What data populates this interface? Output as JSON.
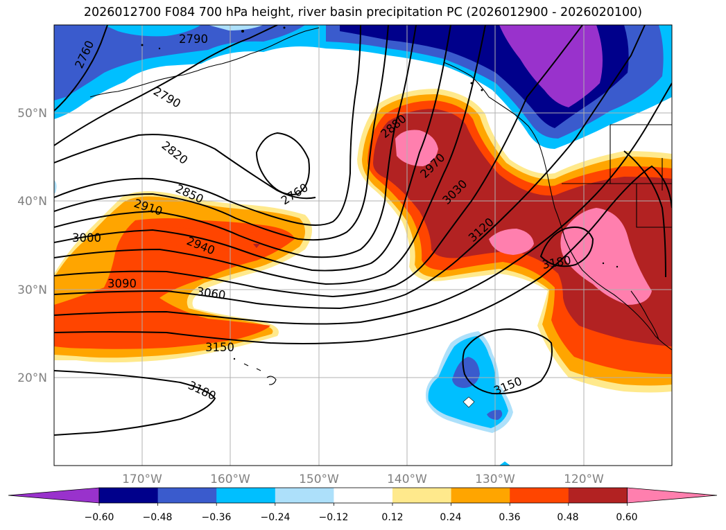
{
  "title": "2026012700 F084 700 hPa height, river basin precipitation PC (2026012900 - 2026020100)",
  "map": {
    "lat_labels": [
      {
        "text": "50°N",
        "lat": 50
      },
      {
        "text": "40°N",
        "lat": 40
      },
      {
        "text": "30°N",
        "lat": 30
      },
      {
        "text": "20°N",
        "lat": 20
      }
    ],
    "lon_labels": [
      {
        "text": "170°W",
        "lon": -170
      },
      {
        "text": "160°W",
        "lon": -160
      },
      {
        "text": "150°W",
        "lon": -150
      },
      {
        "text": "140°W",
        "lon": -140
      },
      {
        "text": "130°W",
        "lon": -130
      },
      {
        "text": "120°W",
        "lon": -120
      }
    ],
    "extent": {
      "lon": [
        -180,
        -110
      ],
      "lat": [
        10,
        60
      ]
    },
    "grid": true,
    "contour_labels": [
      "2790",
      "2760",
      "2790",
      "2820",
      "2850",
      "2910",
      "2940",
      "3000",
      "3090",
      "3060",
      "3150",
      "3180",
      "2760",
      "2880",
      "2970",
      "3030",
      "3120",
      "3180",
      "3150"
    ]
  },
  "colorbar": {
    "ticks": [
      "−0.60",
      "−0.48",
      "−0.36",
      "−0.24",
      "−0.12",
      "0.12",
      "0.24",
      "0.36",
      "0.48",
      "0.60"
    ],
    "colors": [
      "#9932CC",
      "#00008B",
      "#3A5BCD",
      "#00BFFF",
      "#ADE0FA",
      "#FFFFFF",
      "#FFE98C",
      "#FFA500",
      "#FF4500",
      "#B22222",
      "#FF7FAE"
    ],
    "extend": "both"
  },
  "palette": {
    "pink": "#FF7FAE",
    "darkred": "#B22222",
    "orangered": "#FF4500",
    "orange": "#FFA500",
    "yellow": "#FFE98C",
    "lightblue": "#ADE0FA",
    "cyan": "#00BFFF",
    "royal": "#3A5BCD",
    "navy": "#00008B",
    "purple": "#9932CC"
  }
}
